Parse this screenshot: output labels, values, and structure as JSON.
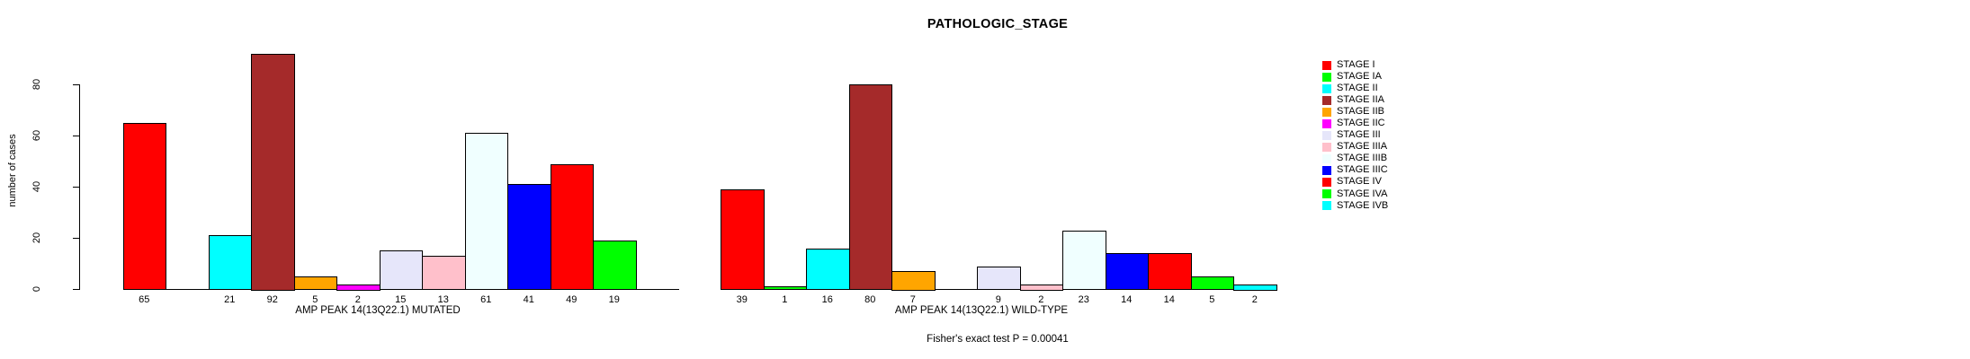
{
  "chart_data": {
    "type": "bar",
    "title": "PATHOLOGIC_STAGE",
    "ylabel": "number of cases",
    "ylim": [
      0,
      80
    ],
    "y_ticks": [
      0,
      20,
      40,
      60,
      80
    ],
    "grid": false,
    "legend_position": "right",
    "categories": [
      "STAGE I",
      "STAGE IA",
      "STAGE II",
      "STAGE IIA",
      "STAGE IIB",
      "STAGE IIC",
      "STAGE III",
      "STAGE IIIA",
      "STAGE IIIB",
      "STAGE IIIC",
      "STAGE IV",
      "STAGE IVA",
      "STAGE IVB"
    ],
    "stage_colors": [
      "#FF0000",
      "#00FF00",
      "#00FFFF",
      "#A52A2A",
      "#FFA500",
      "#FF00FF",
      "#E6E6FA",
      "#FFC0CB",
      "#F0FFFF",
      "#0000FF",
      "#FF0000",
      "#00FF00",
      "#00FFFF"
    ],
    "series": [
      {
        "name": "AMP PEAK 14(13Q22.1) MUTATED",
        "values": [
          65,
          0,
          21,
          92,
          5,
          2,
          15,
          13,
          61,
          41,
          49,
          19,
          0
        ]
      },
      {
        "name": "AMP PEAK 14(13Q22.1) WILD-TYPE",
        "values": [
          39,
          1,
          16,
          80,
          7,
          0,
          9,
          2,
          23,
          14,
          14,
          5,
          2
        ]
      }
    ],
    "annotation": "Fisher's exact test P = 0.00041"
  }
}
